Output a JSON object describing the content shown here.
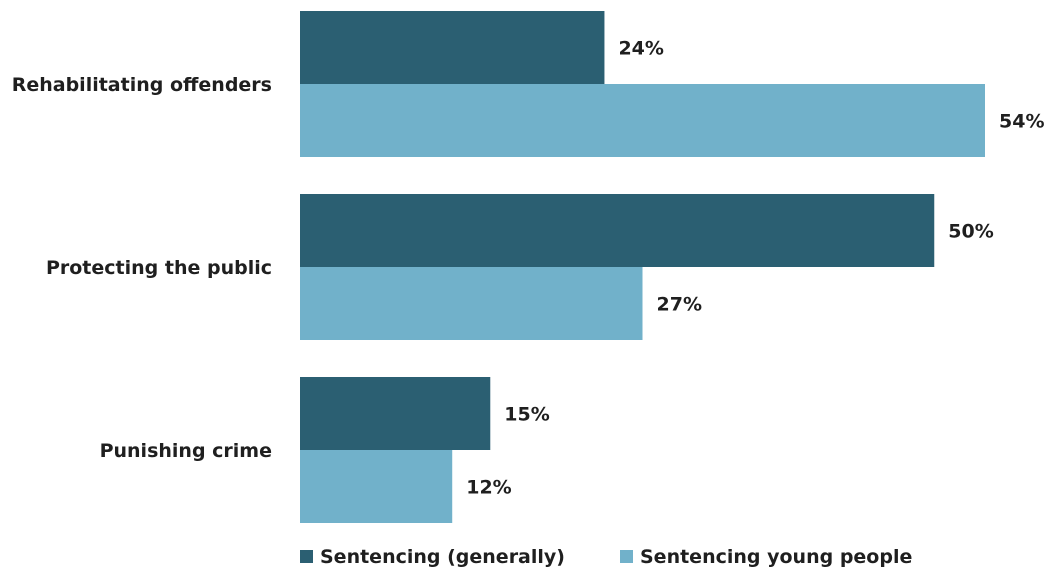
{
  "chart_data": {
    "type": "bar",
    "orientation": "horizontal",
    "categories": [
      "Rehabilitating offenders",
      "Protecting the public",
      "Punishing crime"
    ],
    "series": [
      {
        "name": "Sentencing (generally)",
        "values": [
          24,
          50,
          15
        ],
        "color": "#2b5f72"
      },
      {
        "name": "Sentencing young people",
        "values": [
          54,
          27,
          12
        ],
        "color": "#71b1ca"
      }
    ],
    "value_suffix": "%",
    "xlim": [
      0,
      54
    ],
    "grid": false,
    "axes_visible": false,
    "legend_position": "bottom"
  }
}
